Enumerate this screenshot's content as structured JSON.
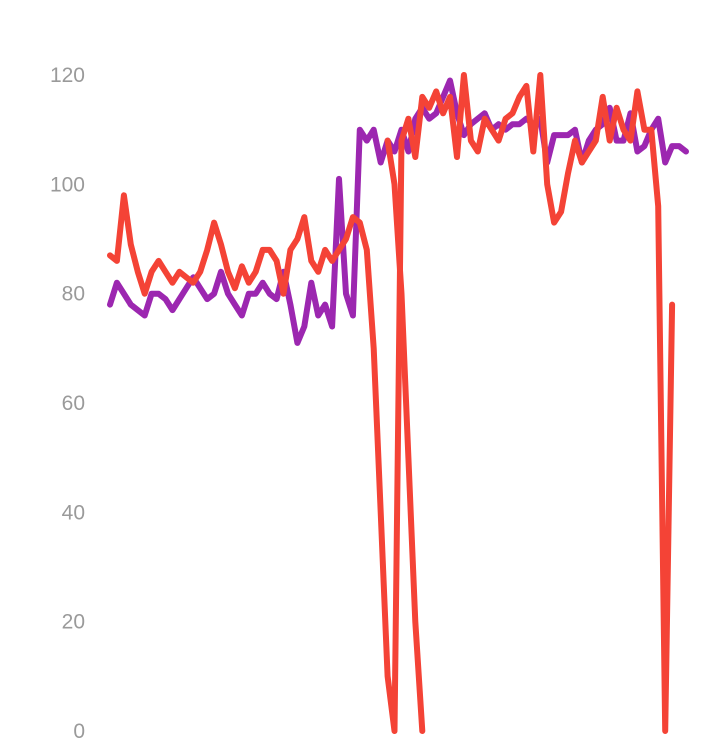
{
  "chart_data": {
    "type": "line",
    "title": "",
    "xlabel": "",
    "ylabel": "",
    "ylim": [
      0,
      120
    ],
    "yticks": [
      0,
      20,
      40,
      60,
      80,
      100,
      120
    ],
    "grid": false,
    "legend": "none",
    "series": [
      {
        "color": "#9c27b0",
        "points": [
          [
            0,
            78
          ],
          [
            1,
            82
          ],
          [
            2,
            80
          ],
          [
            3,
            78
          ],
          [
            4,
            77
          ],
          [
            5,
            76
          ],
          [
            6,
            80
          ],
          [
            7,
            80
          ],
          [
            8,
            79
          ],
          [
            9,
            77
          ],
          [
            10,
            79
          ],
          [
            11,
            81
          ],
          [
            12,
            83
          ],
          [
            13,
            81
          ],
          [
            14,
            79
          ],
          [
            15,
            80
          ],
          [
            16,
            84
          ],
          [
            17,
            80
          ],
          [
            18,
            78
          ],
          [
            19,
            76
          ],
          [
            20,
            80
          ],
          [
            21,
            80
          ],
          [
            22,
            82
          ],
          [
            23,
            80
          ],
          [
            24,
            79
          ],
          [
            25,
            84
          ],
          [
            26,
            78
          ],
          [
            27,
            71
          ],
          [
            28,
            74
          ],
          [
            29,
            82
          ],
          [
            30,
            76
          ],
          [
            31,
            78
          ],
          [
            32,
            74
          ],
          [
            33,
            101
          ],
          [
            34,
            80
          ],
          [
            35,
            76
          ],
          [
            36,
            110
          ],
          [
            37,
            108
          ],
          [
            38,
            110
          ],
          [
            39,
            104
          ],
          [
            40,
            108
          ],
          [
            41,
            106
          ],
          [
            42,
            110
          ],
          [
            43,
            106
          ],
          [
            44,
            112
          ],
          [
            45,
            114
          ],
          [
            46,
            112
          ],
          [
            47,
            113
          ],
          [
            48,
            116
          ],
          [
            49,
            119
          ],
          [
            50,
            113
          ],
          [
            51,
            109
          ],
          [
            52,
            111
          ],
          [
            53,
            112
          ],
          [
            54,
            113
          ],
          [
            55,
            110
          ],
          [
            56,
            111
          ],
          [
            57,
            110
          ],
          [
            58,
            111
          ],
          [
            59,
            111
          ],
          [
            60,
            112
          ],
          [
            61,
            111
          ],
          [
            62,
            112
          ],
          [
            63,
            104
          ],
          [
            64,
            109
          ],
          [
            65,
            109
          ],
          [
            66,
            109
          ],
          [
            67,
            110
          ],
          [
            68,
            104
          ],
          [
            69,
            108
          ],
          [
            70,
            110
          ],
          [
            71,
            111
          ],
          [
            72,
            114
          ],
          [
            73,
            108
          ],
          [
            74,
            108
          ],
          [
            75,
            113
          ],
          [
            76,
            106
          ],
          [
            77,
            107
          ],
          [
            78,
            110
          ],
          [
            79,
            112
          ],
          [
            80,
            104
          ],
          [
            81,
            107
          ],
          [
            82,
            107
          ],
          [
            83,
            106
          ]
        ]
      },
      {
        "color": "#f44336",
        "points": [
          [
            0,
            87
          ],
          [
            1,
            86
          ],
          [
            2,
            98
          ],
          [
            3,
            89
          ],
          [
            4,
            84
          ],
          [
            5,
            80
          ],
          [
            6,
            84
          ],
          [
            7,
            86
          ],
          [
            8,
            84
          ],
          [
            9,
            82
          ],
          [
            10,
            84
          ],
          [
            11,
            83
          ],
          [
            12,
            82
          ],
          [
            13,
            84
          ],
          [
            14,
            88
          ],
          [
            15,
            93
          ],
          [
            16,
            89
          ],
          [
            17,
            84
          ],
          [
            18,
            81
          ],
          [
            19,
            85
          ],
          [
            20,
            82
          ],
          [
            21,
            84
          ],
          [
            22,
            88
          ],
          [
            23,
            88
          ],
          [
            24,
            86
          ],
          [
            25,
            80
          ],
          [
            26,
            88
          ],
          [
            27,
            90
          ],
          [
            28,
            94
          ],
          [
            29,
            86
          ],
          [
            30,
            84
          ],
          [
            31,
            88
          ],
          [
            32,
            86
          ],
          [
            33,
            88
          ],
          [
            34,
            90
          ],
          [
            35,
            94
          ],
          [
            36,
            93
          ],
          [
            37,
            88
          ],
          [
            38,
            70
          ],
          [
            39,
            40
          ],
          [
            40,
            10
          ],
          [
            41,
            0
          ],
          [
            42,
            108
          ],
          [
            43,
            112
          ],
          [
            44,
            105
          ],
          [
            45,
            116
          ],
          [
            46,
            114
          ],
          [
            47,
            117
          ],
          [
            48,
            113
          ],
          [
            49,
            116
          ],
          [
            50,
            105
          ],
          [
            51,
            120
          ],
          [
            52,
            108
          ],
          [
            53,
            106
          ],
          [
            54,
            112
          ],
          [
            55,
            110
          ],
          [
            56,
            108
          ],
          [
            57,
            112
          ],
          [
            58,
            113
          ],
          [
            59,
            116
          ],
          [
            60,
            118
          ],
          [
            61,
            106
          ],
          [
            62,
            120
          ],
          [
            63,
            100
          ],
          [
            64,
            93
          ],
          [
            65,
            95
          ],
          [
            66,
            102
          ],
          [
            67,
            108
          ],
          [
            68,
            104
          ],
          [
            69,
            106
          ],
          [
            70,
            108
          ],
          [
            71,
            116
          ],
          [
            72,
            108
          ],
          [
            73,
            114
          ],
          [
            74,
            110
          ],
          [
            75,
            108
          ],
          [
            76,
            117
          ],
          [
            77,
            110
          ],
          [
            78,
            110
          ],
          [
            79,
            96
          ],
          [
            80,
            0
          ],
          [
            81,
            78
          ]
        ]
      },
      {
        "color": "#f44336",
        "points": [
          [
            40,
            108
          ],
          [
            41,
            100
          ],
          [
            42,
            80
          ],
          [
            43,
            50
          ],
          [
            44,
            20
          ],
          [
            45,
            0
          ]
        ]
      }
    ]
  }
}
